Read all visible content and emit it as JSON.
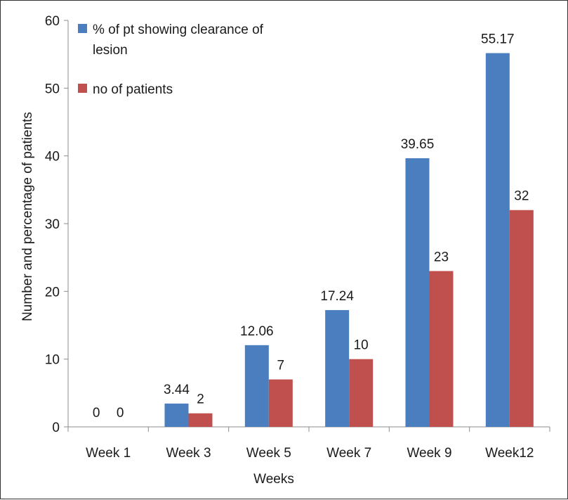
{
  "chart_data": {
    "type": "bar",
    "title": "",
    "xlabel": "Weeks",
    "ylabel": "Number and percentage of patients",
    "ylim": [
      0,
      60
    ],
    "yticks": [
      0,
      10,
      20,
      30,
      40,
      50,
      60
    ],
    "grid": false,
    "legend_position": "top-left",
    "categories": [
      "Week 1",
      "Week 3",
      "Week 5",
      "Week 7",
      "Week 9",
      "Week12"
    ],
    "series": [
      {
        "name": "% of pt showing clearance of lesion",
        "legend_lines": [
          "% of pt showing clearance of",
          "lesion"
        ],
        "color": "#4a7ebf",
        "values": [
          0,
          3.44,
          12.06,
          17.24,
          39.65,
          55.17
        ],
        "labels": [
          "0",
          "3.44",
          "12.06",
          "17.24",
          "39.65",
          "55.17"
        ]
      },
      {
        "name": "no of patients",
        "legend_lines": [
          "no of patients"
        ],
        "color": "#c0504d",
        "values": [
          0,
          2,
          7,
          10,
          23,
          32
        ],
        "labels": [
          "0",
          "2",
          "7",
          "10",
          "23",
          "32"
        ]
      }
    ]
  }
}
